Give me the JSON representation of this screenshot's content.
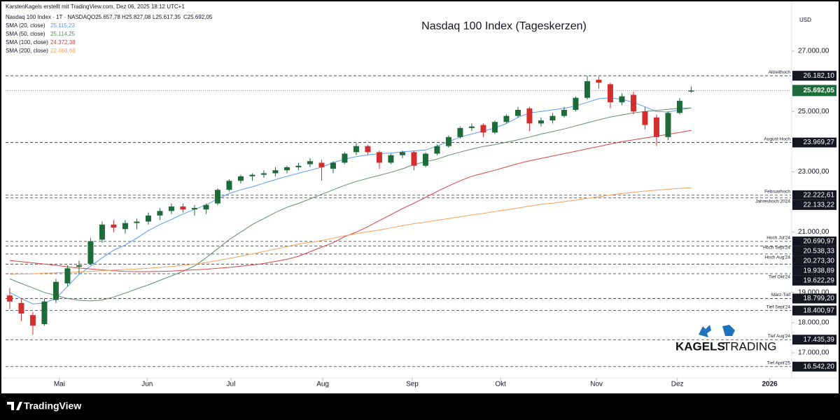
{
  "header": {
    "credit": "KarstenKagels erstellt mit TradingView.com, Dez 06, 2025 18:12 UTC+1",
    "symbol": "Nasdaq 100 Index · 1T · NASDAQ",
    "ohlc": [
      "O25.657,78",
      "H25.827,08",
      "L25.617,35",
      "C25.692,05"
    ]
  },
  "chart_data": {
    "type": "candlestick",
    "title": "Nasdaq 100 Index (Tageskerzen)",
    "currency": "USD",
    "up_color": "#1e6b3a",
    "down_color": "#d32f2f",
    "grid": false,
    "categories": [
      null,
      null,
      null,
      null,
      null,
      null,
      null,
      null,
      null,
      null,
      null,
      null,
      null,
      null,
      null,
      null,
      null,
      null,
      null,
      null,
      null,
      null,
      null,
      null,
      null,
      null,
      null,
      null,
      null,
      null,
      null,
      null,
      null,
      null,
      null,
      null,
      null,
      null,
      null,
      null,
      null,
      null,
      null,
      null,
      null,
      null,
      null,
      null,
      null,
      null,
      null,
      null,
      null,
      null,
      null,
      null,
      null,
      null,
      null,
      null
    ],
    "candles": [
      [
        18900,
        19150,
        18450,
        18700
      ],
      [
        18650,
        18800,
        18050,
        18300
      ],
      [
        18250,
        18350,
        17600,
        17900
      ],
      [
        17950,
        18800,
        17900,
        18700
      ],
      [
        18750,
        19450,
        18650,
        19350
      ],
      [
        19300,
        19900,
        19200,
        19800
      ],
      [
        19850,
        20050,
        19600,
        19900
      ],
      [
        19950,
        20800,
        19900,
        20700
      ],
      [
        20750,
        21350,
        20650,
        21250
      ],
      [
        21250,
        21400,
        21000,
        21150
      ],
      [
        21100,
        21400,
        20950,
        21300
      ],
      [
        21300,
        21450,
        21100,
        21350
      ],
      [
        21350,
        21650,
        21250,
        21550
      ],
      [
        21550,
        21800,
        21400,
        21700
      ],
      [
        21700,
        21950,
        21600,
        21850
      ],
      [
        21850,
        21950,
        21650,
        21750
      ],
      [
        21750,
        21900,
        21550,
        21800
      ],
      [
        21750,
        21950,
        21600,
        21900
      ],
      [
        21950,
        22450,
        21900,
        22400
      ],
      [
        22400,
        22750,
        22350,
        22700
      ],
      [
        22700,
        22900,
        22600,
        22850
      ],
      [
        22850,
        22950,
        22700,
        22900
      ],
      [
        22900,
        23050,
        22800,
        22950
      ],
      [
        22950,
        23150,
        22850,
        23050
      ],
      [
        23050,
        23200,
        22950,
        23150
      ],
      [
        23150,
        23300,
        23050,
        23200
      ],
      [
        23250,
        23450,
        23150,
        23350
      ],
      [
        23300,
        23400,
        22700,
        23150
      ],
      [
        23100,
        23350,
        22950,
        23300
      ],
      [
        23300,
        23650,
        23250,
        23600
      ],
      [
        23650,
        23950,
        23550,
        23850
      ],
      [
        23850,
        23900,
        23550,
        23650
      ],
      [
        23650,
        23700,
        23100,
        23300
      ],
      [
        23300,
        23600,
        23250,
        23550
      ],
      [
        23550,
        23700,
        23450,
        23650
      ],
      [
        23650,
        23700,
        23050,
        23200
      ],
      [
        23200,
        23650,
        23150,
        23600
      ],
      [
        23600,
        23900,
        23550,
        23850
      ],
      [
        23850,
        24200,
        23800,
        24150
      ],
      [
        24150,
        24500,
        24100,
        24450
      ],
      [
        24450,
        24600,
        24350,
        24500
      ],
      [
        24550,
        24600,
        24150,
        24300
      ],
      [
        24300,
        24700,
        24250,
        24650
      ],
      [
        24650,
        24900,
        24600,
        24850
      ],
      [
        24850,
        25150,
        24800,
        25050
      ],
      [
        25100,
        25150,
        24350,
        24600
      ],
      [
        24600,
        24800,
        24500,
        24700
      ],
      [
        24700,
        24950,
        24600,
        24850
      ],
      [
        24850,
        25150,
        24800,
        25050
      ],
      [
        25050,
        25500,
        25000,
        25450
      ],
      [
        25450,
        26182,
        25400,
        26000
      ],
      [
        26050,
        26150,
        25750,
        25950
      ],
      [
        25900,
        25950,
        25100,
        25300
      ],
      [
        25300,
        25600,
        25200,
        25500
      ],
      [
        25550,
        25650,
        24900,
        25000
      ],
      [
        25000,
        25150,
        24400,
        24550
      ],
      [
        24800,
        24900,
        23850,
        24150
      ],
      [
        24150,
        25000,
        24050,
        24950
      ],
      [
        24950,
        25450,
        24900,
        25350
      ],
      [
        25657.78,
        25827.08,
        25617.35,
        25692.05
      ]
    ],
    "series": [
      {
        "name": "SMA (20, close)",
        "value_label": "25.115,23",
        "color": "#5b9cf6",
        "values": [
          19000,
          18800,
          18620,
          18650,
          18800,
          19200,
          19600,
          19870,
          20150,
          20400,
          20570,
          20800,
          21050,
          21250,
          21420,
          21600,
          21750,
          21900,
          22100,
          22280,
          22400,
          22500,
          22620,
          22740,
          22850,
          22950,
          23050,
          23150,
          23300,
          23420,
          23500,
          23560,
          23600,
          23620,
          23660,
          23690,
          23720,
          23850,
          24000,
          24150,
          24250,
          24350,
          24450,
          24600,
          24800,
          24950,
          25000,
          25050,
          25100,
          25180,
          25300,
          25420,
          25450,
          25400,
          25300,
          25150,
          25000,
          24980,
          25050,
          25115.23
        ]
      },
      {
        "name": "SMA (50, close)",
        "value_label": "25.114,25",
        "color": "#5f8f66",
        "values": [
          19450,
          19300,
          19150,
          19000,
          18900,
          18800,
          18740,
          18720,
          18750,
          18850,
          18980,
          19120,
          19250,
          19400,
          19550,
          19700,
          19880,
          20150,
          20450,
          20750,
          21000,
          21250,
          21450,
          21650,
          21820,
          21950,
          22100,
          22250,
          22400,
          22550,
          22680,
          22780,
          22880,
          22980,
          23100,
          23240,
          23330,
          23420,
          23550,
          23650,
          23750,
          23840,
          23900,
          23980,
          24060,
          24150,
          24250,
          24330,
          24420,
          24520,
          24620,
          24720,
          24810,
          24880,
          24950,
          25000,
          25030,
          25070,
          25100,
          25114.25
        ]
      },
      {
        "name": "SMA (100, close)",
        "value_label": "24.372,38",
        "color": "#d64545",
        "values": [
          20060,
          20020,
          19980,
          19940,
          19900,
          19850,
          19810,
          19780,
          19750,
          19720,
          19700,
          19690,
          19690,
          19700,
          19710,
          19730,
          19750,
          19770,
          19800,
          19830,
          19870,
          19910,
          19960,
          20030,
          20100,
          20200,
          20350,
          20500,
          20650,
          20850,
          21000,
          21180,
          21380,
          21580,
          21780,
          21960,
          22150,
          22350,
          22530,
          22700,
          22850,
          22950,
          23050,
          23160,
          23270,
          23360,
          23440,
          23520,
          23600,
          23680,
          23760,
          23840,
          23920,
          24000,
          24060,
          24120,
          24180,
          24240,
          24300,
          24372.38
        ]
      },
      {
        "name": "SMA (200, close)",
        "value_label": "22.468,68",
        "color": "#f5a35a",
        "values": [
          19600,
          19610,
          19620,
          19640,
          19650,
          19660,
          19680,
          19700,
          19720,
          19740,
          19760,
          19780,
          19800,
          19830,
          19860,
          19900,
          19940,
          19990,
          20060,
          20130,
          20200,
          20280,
          20360,
          20440,
          20520,
          20600,
          20660,
          20720,
          20800,
          20880,
          20950,
          21010,
          21070,
          21140,
          21210,
          21280,
          21330,
          21390,
          21450,
          21510,
          21570,
          21620,
          21680,
          21740,
          21800,
          21860,
          21920,
          21960,
          22010,
          22060,
          22120,
          22170,
          22230,
          22280,
          22320,
          22360,
          22390,
          22420,
          22450,
          22468.68
        ]
      }
    ],
    "ylim": [
      16165,
      28460
    ],
    "yticks": [
      {
        "value": 27000,
        "label": "27.000,00"
      },
      {
        "value": 25000,
        "label": "25.000,00"
      },
      {
        "value": 23000,
        "label": "23.000,00"
      },
      {
        "value": 21000,
        "label": "21.000,00"
      },
      {
        "value": 19000,
        "label": "19.000,00"
      },
      {
        "value": 18000,
        "label": "18.000,00"
      },
      {
        "value": 17000,
        "label": "17.000,00"
      }
    ],
    "xlim": [
      -0.36,
      67.64
    ],
    "xticks": [
      {
        "value": 4.3,
        "label": "Mai"
      },
      {
        "value": 11.9,
        "label": "Jun"
      },
      {
        "value": 19.15,
        "label": "Jul"
      },
      {
        "value": 27.1,
        "label": "Aug"
      },
      {
        "value": 34.85,
        "label": "Sep"
      },
      {
        "value": 42.5,
        "label": "Okt"
      },
      {
        "value": 50.8,
        "label": "Nov"
      },
      {
        "value": 57.8,
        "label": "Dez"
      },
      {
        "value": 65.8,
        "label": "2026"
      }
    ],
    "levels": [
      {
        "value": 26182.1,
        "label": "26.182,10",
        "note": "Allzeithoch"
      },
      {
        "value": 23969.27,
        "label": "23.969,27",
        "note": "August-Hoch"
      },
      {
        "value": 22222.61,
        "label": "22.222,61",
        "note": "Februarhoch"
      },
      {
        "value": 22133.22,
        "label": "22.133,22",
        "note": "Jahreshoch 2024"
      },
      {
        "value": 20690.97,
        "label": "20.690,97",
        "note": "Hoch Jul'24"
      },
      {
        "value": 20538.33,
        "label": "20.538,33",
        "note": "Hoch Sept'24"
      },
      {
        "value": 20273.3,
        "label": "20.273,30",
        "note": "Hoch Aug'24"
      },
      {
        "value": 19938.89,
        "label": "19.938,89"
      },
      {
        "value": 19622.29,
        "label": "19.622,29",
        "note": "Tief Okt'24"
      },
      {
        "value": 18799.2,
        "label": "18.799,20",
        "note": "März-Tief"
      },
      {
        "value": 18400.97,
        "label": "18.400,97",
        "note": "Tief Sept'24"
      },
      {
        "value": 17435.39,
        "label": "17.435,39",
        "note": "Tief Aug'24"
      },
      {
        "value": 16542.2,
        "label": "16.542,20",
        "note": "Tief April'25"
      }
    ],
    "last_price": {
      "value": 25692.05,
      "label": "25.692,05",
      "color": "#1e6b3a"
    }
  },
  "logo": {
    "word1": "KAGELS",
    "word2": "TRADING"
  },
  "footer": {
    "brand": "TradingView"
  }
}
